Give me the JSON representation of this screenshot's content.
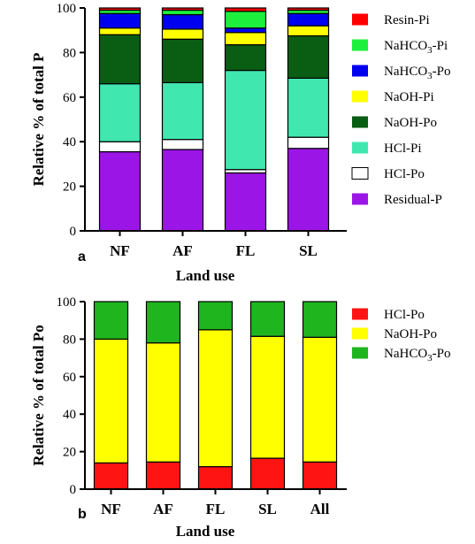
{
  "chart_data": [
    {
      "type": "bar",
      "stacked": true,
      "panel_label": "a",
      "categories": [
        "NF",
        "AF",
        "FL",
        "SL"
      ],
      "xlabel": "Land use",
      "ylabel": "Relative % of total P",
      "ylim": [
        0,
        100
      ],
      "yticks": [
        "0",
        "20",
        "40",
        "60",
        "80",
        "100"
      ],
      "legend_position": "right",
      "series": [
        {
          "name": "Residual-P",
          "color": "#9b16e6",
          "values": [
            35.5,
            36.5,
            26,
            37
          ]
        },
        {
          "name": "HCl-Po",
          "color": "#ffffff",
          "values": [
            4.5,
            4.5,
            1.5,
            5
          ]
        },
        {
          "name": "HCl-Pi",
          "color": "#40e8b0",
          "values": [
            26,
            25.5,
            44.5,
            26.5
          ]
        },
        {
          "name": "NaOH-Po",
          "color": "#0a5e14",
          "values": [
            22,
            19.5,
            11.5,
            19
          ]
        },
        {
          "name": "NaOH-Pi",
          "color": "#ffff00",
          "values": [
            3,
            4.5,
            5.5,
            4.5
          ]
        },
        {
          "name": "NaHCO3-Po",
          "color": "#0000f0",
          "values": [
            6.5,
            6.5,
            2,
            5.5
          ]
        },
        {
          "name": "NaHCO3-Pi",
          "color": "#1cf03c",
          "values": [
            1.5,
            2,
            7.5,
            1.5
          ]
        },
        {
          "name": "Resin-Pi",
          "color": "#ff0000",
          "values": [
            1,
            1,
            1.5,
            1
          ]
        }
      ],
      "legend": [
        {
          "label": "Resin-Pi",
          "sub": "",
          "after": "",
          "color": "#ff0000"
        },
        {
          "label": "NaHCO",
          "sub": "3",
          "after": "-Pi",
          "color": "#1cf03c"
        },
        {
          "label": "NaHCO",
          "sub": "3",
          "after": "-Po",
          "color": "#0000f0"
        },
        {
          "label": "NaOH-Pi",
          "sub": "",
          "after": "",
          "color": "#ffff00"
        },
        {
          "label": "NaOH-Po",
          "sub": "",
          "after": "",
          "color": "#0a5e14"
        },
        {
          "label": "HCl-Pi",
          "sub": "",
          "after": "",
          "color": "#40e8b0"
        },
        {
          "label": "HCl-Po",
          "sub": "",
          "after": "",
          "color": "#ffffff"
        },
        {
          "label": "Residual-P",
          "sub": "",
          "after": "",
          "color": "#9b16e6"
        }
      ]
    },
    {
      "type": "bar",
      "stacked": true,
      "panel_label": "b",
      "categories": [
        "NF",
        "AF",
        "FL",
        "SL",
        "All"
      ],
      "xlabel": "Land use",
      "ylabel": "Relative % of total Po",
      "ylim": [
        0,
        100
      ],
      "yticks": [
        "0",
        "20",
        "40",
        "60",
        "80",
        "100"
      ],
      "legend_position": "right",
      "series": [
        {
          "name": "HCl-Po",
          "color": "#ff1414",
          "values": [
            14,
            14.5,
            12,
            16.5,
            14.5
          ]
        },
        {
          "name": "NaOH-Po",
          "color": "#ffff00",
          "values": [
            66,
            63.5,
            73,
            65,
            66.5
          ]
        },
        {
          "name": "NaHCO3-Po",
          "color": "#1fb51f",
          "values": [
            20,
            22,
            15,
            18.5,
            19
          ]
        }
      ],
      "legend": [
        {
          "label": "HCl-Po",
          "sub": "",
          "after": "",
          "color": "#ff1414"
        },
        {
          "label": "NaOH-Po",
          "sub": "",
          "after": "",
          "color": "#ffff00"
        },
        {
          "label": "NaHCO",
          "sub": "3",
          "after": "-Po",
          "color": "#1fb51f"
        }
      ]
    }
  ]
}
